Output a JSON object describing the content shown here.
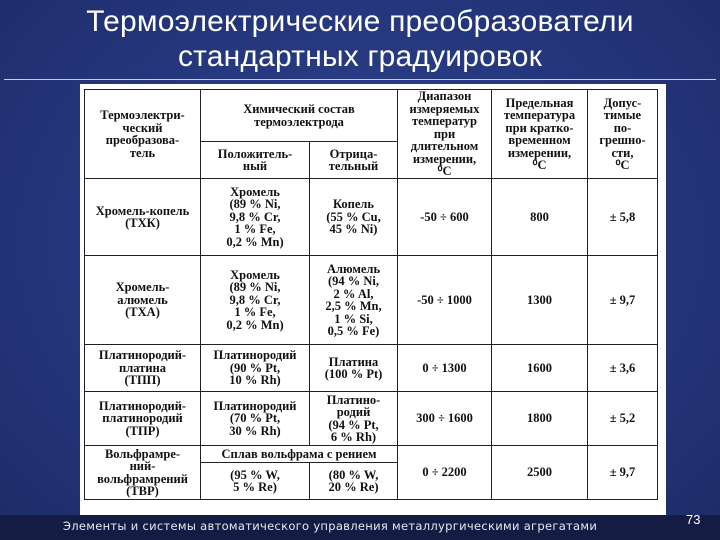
{
  "slide": {
    "title": "Термоэлектрические преобразователи\nстандартных градуировок",
    "footer": "Элементы и системы автоматического управления металлургическими агрегатами",
    "page_number": "73"
  },
  "table": {
    "headers": {
      "converter": "Термоэлектри-\nческий\nпреобразова-\nтель",
      "composition": "Химический состав\nтермоэлектрода",
      "positive": "Положитель-\nный",
      "negative": "Отрица-\nтельный",
      "range": "Диапазон\nизмеряемых\nтемператур\nпри\nдлительном\nизмерении,\n⁰С",
      "limit": "Предельная\nтемпература\nпри кратко-\nвременном\nизмерении,\n⁰С",
      "error": "Допус-\nтимые\nпо-\nгрешно-\nсти,\n⁰С"
    },
    "rows": [
      {
        "name": "Хромель-копель\n(ТХК)",
        "positive": "Хромель\n(89 % Ni,\n9,8 % Cr,\n1 % Fe,\n0,2 % Mn)",
        "negative": "Копель\n(55 % Cu,\n45 % Ni)",
        "range": "-50 ÷ 600",
        "limit": "800",
        "error": "± 5,8"
      },
      {
        "name": "Хромель-\nалюмель\n(ТХА)",
        "positive": "Хромель\n(89 % Ni,\n9,8 % Cr,\n1 % Fe,\n0,2 % Mn)",
        "negative": "Алюмель\n(94 % Ni,\n2 % Al,\n2,5 % Mn,\n1 % Si,\n0,5 % Fe)",
        "range": "-50 ÷ 1000",
        "limit": "1300",
        "error": "± 9,7"
      },
      {
        "name": "Платинородий-\nплатина\n(ТПП)",
        "positive": "Платинородий\n(90 % Pt,\n10 % Rh)",
        "negative": "Платина\n(100 % Pt)",
        "range": "0 ÷ 1300",
        "limit": "1600",
        "error": "± 3,6"
      },
      {
        "name": "Платинородий-\nплатинородий\n(ТПР)",
        "positive": "Платинородий\n(70 % Pt,\n30 % Rh)",
        "negative": "Платино-\nродий\n(94 % Pt,\n6 % Rh)",
        "range": "300 ÷ 1600",
        "limit": "1800",
        "error": "± 5,2"
      },
      {
        "name": "Вольфрамре-\nний-\nвольфрамрений\n(ТВР)",
        "composition_span": "Сплав вольфрама с рением",
        "positive": "(95 % W,\n5 % Re)",
        "negative": "(80 % W,\n20 % Re)",
        "range": "0 ÷ 2200",
        "limit": "2500",
        "error": "± 9,7"
      }
    ]
  }
}
